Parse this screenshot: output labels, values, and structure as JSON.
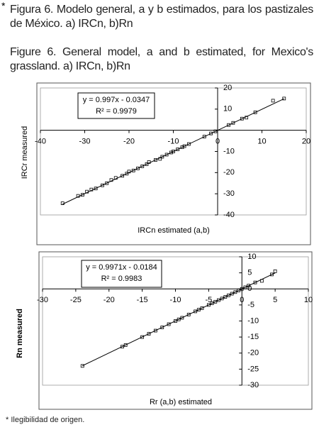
{
  "caption_marker": "*",
  "caption_es": "Figura 6. Modelo general, a y b estimados, para los pastizales de México. a) IRCn, b)Rn",
  "caption_en": "Figure 6. General model, a and b estimated, for Mexico's grassland. a) IRCn, b)Rn",
  "footnote": "* Ilegibilidad de origen.",
  "chart_data": [
    {
      "type": "scatter",
      "x_label": "IRCn estimated (a,b)",
      "y_label": "IRCr measured",
      "equation": "y = 0.997x - 0.0347",
      "r_squared": "R² = 0.9979",
      "xlim": [
        -40,
        20
      ],
      "xticks": [
        -40,
        -30,
        -20,
        -10,
        0,
        10,
        20
      ],
      "ylim": [
        -40,
        20
      ],
      "yticks": [
        -40,
        -30,
        -20,
        -10,
        10,
        20
      ],
      "series": [
        {
          "color": "#000000",
          "x": [
            -35,
            -31.5,
            -30.5,
            -29.5,
            -28.5,
            -27.5,
            -26,
            -25,
            -24,
            -23,
            -21.5,
            -20.5,
            -20,
            -19,
            -18,
            -17,
            -16,
            -15.5,
            -14,
            -13,
            -12.5,
            -11.5,
            -10.5,
            -10,
            -9,
            -8,
            -7.5,
            -6.5,
            -3,
            -1.5,
            -0.5,
            2.5,
            3.5,
            5.5,
            6.5,
            8.5,
            12.5,
            15
          ],
          "values": [
            -34.5,
            -31,
            -30.5,
            -29,
            -28,
            -27.5,
            -26,
            -25,
            -23.5,
            -22.5,
            -21.5,
            -20.5,
            -19.5,
            -19,
            -18,
            -17,
            -16,
            -15,
            -14,
            -13.5,
            -12.5,
            -11.5,
            -10.5,
            -10,
            -9,
            -8,
            -7.5,
            -6.5,
            -3,
            -1.5,
            -0.5,
            2.5,
            3.5,
            5.5,
            6,
            8.5,
            14,
            15
          ]
        }
      ],
      "trendline": {
        "x": [
          -35,
          15
        ],
        "y": [
          -34.93,
          14.92
        ]
      }
    },
    {
      "type": "scatter",
      "x_label": "Rr (a,b) estimated",
      "y_label": "Rn measured",
      "equation": "y = 0.9971x - 0.0184",
      "r_squared": "R² = 0.9983",
      "xlim": [
        -30,
        10
      ],
      "xticks": [
        -30,
        -25,
        -20,
        -15,
        -10,
        -5,
        0,
        5,
        10
      ],
      "ylim": [
        -30,
        10
      ],
      "yticks": [
        -30,
        -25,
        -20,
        -15,
        -10,
        -5,
        0,
        5,
        10
      ],
      "series": [
        {
          "color": "#000000",
          "x": [
            -24,
            -18,
            -17.5,
            -15,
            -14,
            -13,
            -12,
            -11,
            -10,
            -9.5,
            -9,
            -8,
            -7,
            -6.5,
            -6,
            -5,
            -4.5,
            -4,
            -3.5,
            -3,
            -2.5,
            -2,
            -1.5,
            -1,
            -0.5,
            0,
            0.5,
            1,
            2,
            3,
            4.5,
            5
          ],
          "values": [
            -24,
            -18,
            -17.5,
            -15,
            -14,
            -13,
            -12,
            -11,
            -10,
            -9.5,
            -9,
            -8,
            -7,
            -6.5,
            -6,
            -5,
            -4.5,
            -4,
            -3.5,
            -3,
            -2.5,
            -2,
            -1.5,
            -1,
            -0.5,
            0,
            0.5,
            1,
            2,
            2.5,
            4.5,
            5.5
          ]
        }
      ],
      "trendline": {
        "x": [
          -24,
          5
        ],
        "y": [
          -23.95,
          4.97
        ]
      }
    }
  ]
}
